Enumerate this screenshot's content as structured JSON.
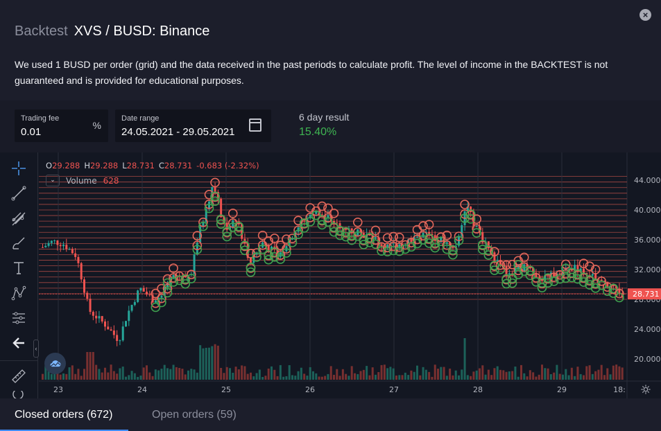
{
  "header": {
    "title_prefix": "Backtest",
    "title": "XVS / BUSD: Binance"
  },
  "description": "We used 1 BUSD per order (grid) and the data received in the past periods to calculate profit. The level of income in the BACKTEST is not guaranteed and is provided for educational purposes.",
  "settings": {
    "trading_fee": {
      "label": "Trading fee",
      "value": "0.01",
      "unit": "%"
    },
    "date_range": {
      "label": "Date range",
      "value": "24.05.2021 - 29.05.2021"
    },
    "result": {
      "label": "6 day result",
      "value": "15.40%"
    }
  },
  "chart": {
    "ohlc": {
      "o_label": "O",
      "o": "29.288",
      "h_label": "H",
      "h": "29.288",
      "l_label": "L",
      "l": "28.731",
      "c_label": "C",
      "c": "28.731",
      "change": "-0.683 (-2.32%)"
    },
    "volume_legend": {
      "name": "Volume",
      "value": "628"
    },
    "price_labels": [
      "44.000",
      "40.000",
      "36.000",
      "32.000",
      "28.000",
      "24.000",
      "20.000"
    ],
    "last_price_tag": "28.731",
    "time_labels": [
      "23",
      "24",
      "25",
      "26",
      "27",
      "28",
      "29",
      "18:"
    ],
    "colors": {
      "up": "#26a69a",
      "down": "#ef5350",
      "buy_order": "#3fa14f",
      "sell_order": "#e2675a",
      "grid_line": "#d7584e"
    }
  },
  "chart_data": {
    "type": "candlestick",
    "title": "",
    "x_label": "",
    "y_label": "",
    "y_range": [
      17.5,
      45.5
    ],
    "grid": true,
    "x_ticks": [
      "23",
      "24",
      "25",
      "26",
      "27",
      "28",
      "29",
      "18:"
    ],
    "y_ticks": [
      44,
      40,
      36,
      32,
      28,
      24,
      20
    ],
    "close_approx": [
      {
        "t": 0.0,
        "v": 35.0
      },
      {
        "t": 0.12,
        "v": 35.8
      },
      {
        "t": 0.25,
        "v": 35.4
      },
      {
        "t": 0.4,
        "v": 33.8
      },
      {
        "t": 0.55,
        "v": 26.5
      },
      {
        "t": 0.75,
        "v": 24.5
      },
      {
        "t": 0.9,
        "v": 22.5
      },
      {
        "t": 1.0,
        "v": 26.0
      },
      {
        "t": 1.15,
        "v": 29.5
      },
      {
        "t": 1.3,
        "v": 28.0
      },
      {
        "t": 1.4,
        "v": 28.5
      },
      {
        "t": 1.55,
        "v": 31.0
      },
      {
        "t": 1.75,
        "v": 31.5
      },
      {
        "t": 1.85,
        "v": 37.0
      },
      {
        "t": 1.95,
        "v": 40.5
      },
      {
        "t": 2.02,
        "v": 43.5
      },
      {
        "t": 2.15,
        "v": 37.5
      },
      {
        "t": 2.3,
        "v": 38.5
      },
      {
        "t": 2.45,
        "v": 33.0
      },
      {
        "t": 2.6,
        "v": 35.5
      },
      {
        "t": 2.8,
        "v": 34.0
      },
      {
        "t": 3.0,
        "v": 37.5
      },
      {
        "t": 3.2,
        "v": 39.8
      },
      {
        "t": 3.35,
        "v": 39.0
      },
      {
        "t": 3.5,
        "v": 38.0
      },
      {
        "t": 3.7,
        "v": 37.0
      },
      {
        "t": 3.85,
        "v": 36.5
      },
      {
        "t": 4.05,
        "v": 35.0
      },
      {
        "t": 4.25,
        "v": 35.5
      },
      {
        "t": 4.5,
        "v": 36.8
      },
      {
        "t": 4.7,
        "v": 36.0
      },
      {
        "t": 4.9,
        "v": 35.2
      },
      {
        "t": 5.0,
        "v": 41.0
      },
      {
        "t": 5.1,
        "v": 38.0
      },
      {
        "t": 5.3,
        "v": 34.0
      },
      {
        "t": 5.5,
        "v": 31.5
      },
      {
        "t": 5.7,
        "v": 32.5
      },
      {
        "t": 5.9,
        "v": 30.5
      },
      {
        "t": 6.1,
        "v": 31.8
      },
      {
        "t": 6.3,
        "v": 32.2
      },
      {
        "t": 6.5,
        "v": 31.0
      },
      {
        "t": 6.7,
        "v": 29.5
      },
      {
        "t": 6.85,
        "v": 28.73
      }
    ],
    "closed_orders": 672,
    "open_orders": 59
  },
  "tabs": [
    {
      "label": "Closed orders (672)"
    },
    {
      "label": "Open orders (59)"
    }
  ]
}
